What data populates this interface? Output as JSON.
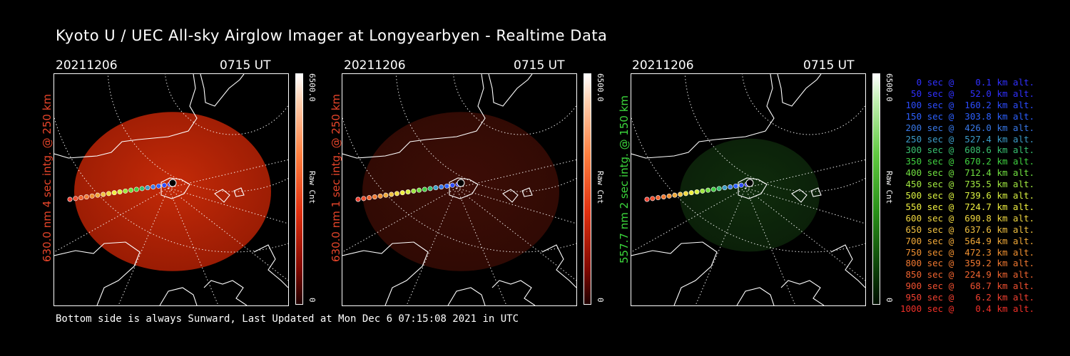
{
  "title": "Kyoto U / UEC All-sky Airglow Imager at Longyearbyen - Realtime Data",
  "panels": [
    {
      "date": "20211206",
      "time": "0715 UT",
      "side_label": "630.0 nm 4 sec intg. @ 250 km",
      "side_color": "#e8452a",
      "cbar_max": "6500.0",
      "cbar_unit": "Raw Cnt",
      "cbar_min": "0",
      "tint": "#c42a08",
      "tint_edge": "#9a1c04"
    },
    {
      "date": "20211206",
      "time": "0715 UT",
      "side_label": "630.0 nm 1 sec intg. @ 250 km",
      "side_color": "#e8452a",
      "cbar_max": "6500.0",
      "cbar_unit": "Raw Cnt",
      "cbar_min": "0",
      "tint": "#3d0d06",
      "tint_edge": "#300a04"
    },
    {
      "date": "20211206",
      "time": "0715 UT",
      "side_label": "557.7 nm 2 sec intg. @ 150 km",
      "side_color": "#3cd83c",
      "cbar_max": "6500.0",
      "cbar_unit": "Raw Cnt",
      "cbar_min": "0",
      "tint": "#0f2c0c",
      "tint_edge": "#0b2009"
    }
  ],
  "legend": [
    {
      "text": "   0 sec @    0.1 km alt.",
      "color": "#3030ff"
    },
    {
      "text": "  50 sec @   52.0 km alt.",
      "color": "#3030ff"
    },
    {
      "text": " 100 sec @  160.2 km alt.",
      "color": "#2c4cff"
    },
    {
      "text": " 150 sec @  303.8 km alt.",
      "color": "#2c60ff"
    },
    {
      "text": " 200 sec @  426.0 km alt.",
      "color": "#3878e8"
    },
    {
      "text": " 250 sec @  527.4 km alt.",
      "color": "#3c9cc8"
    },
    {
      "text": " 300 sec @  608.6 km alt.",
      "color": "#38c070"
    },
    {
      "text": " 350 sec @  670.2 km alt.",
      "color": "#40d040"
    },
    {
      "text": " 400 sec @  712.4 km alt.",
      "color": "#70e040"
    },
    {
      "text": " 450 sec @  735.5 km alt.",
      "color": "#a0e840"
    },
    {
      "text": " 500 sec @  739.6 km alt.",
      "color": "#d8f040"
    },
    {
      "text": " 550 sec @  724.7 km alt.",
      "color": "#f0f040"
    },
    {
      "text": " 600 sec @  690.8 km alt.",
      "color": "#f0d840"
    },
    {
      "text": " 650 sec @  637.6 km alt.",
      "color": "#f0c040"
    },
    {
      "text": " 700 sec @  564.9 km alt.",
      "color": "#f0a838"
    },
    {
      "text": " 750 sec @  472.3 km alt.",
      "color": "#f09030"
    },
    {
      "text": " 800 sec @  359.2 km alt.",
      "color": "#f07830"
    },
    {
      "text": " 850 sec @  224.9 km alt.",
      "color": "#f06430"
    },
    {
      "text": " 900 sec @   68.7 km alt.",
      "color": "#f05030"
    },
    {
      "text": " 950 sec @    6.2 km alt.",
      "color": "#f04030"
    },
    {
      "text": "1000 sec @    0.4 km alt.",
      "color": "#f03028"
    }
  ],
  "footer": "Bottom side is always Sunward, Last Updated at Mon Dec  6 07:15:08 2021 in UTC"
}
